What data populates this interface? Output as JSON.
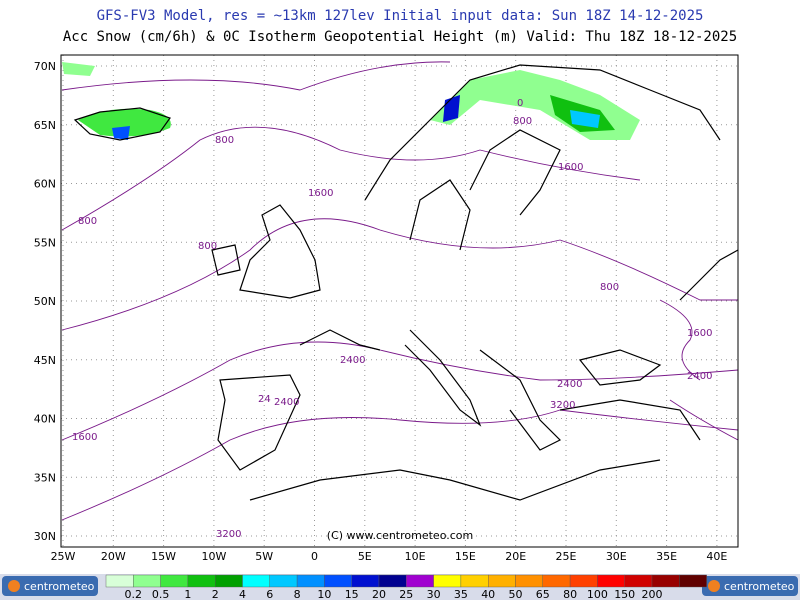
{
  "header": {
    "title": "GFS-FV3 Model, res = ~13km 127lev    Initial input data: Sun 18Z 14-12-2025",
    "subtitle": "Acc Snow (cm/6h) & 0C Isotherm Geopotential Height (m)  Valid: Thu 18Z 18-12-2025"
  },
  "map": {
    "lat_labels": [
      "70N",
      "65N",
      "60N",
      "55N",
      "50N",
      "45N",
      "40N",
      "35N",
      "30N"
    ],
    "lon_labels": [
      "25W",
      "20W",
      "15W",
      "10W",
      "5W",
      "0",
      "5E",
      "10E",
      "15E",
      "20E",
      "25E",
      "30E",
      "35E",
      "40E"
    ],
    "contour_labels": [
      "800",
      "800",
      "800",
      "1600",
      "1600",
      "800",
      "0",
      "800",
      "1600",
      "2400",
      "24",
      "2400",
      "2400",
      "3200",
      "2400",
      "1600",
      "3200"
    ],
    "copyright": "(C) www.centrometeo.com"
  },
  "legend": {
    "labels": [
      "0.2",
      "0.5",
      "1",
      "2",
      "4",
      "6",
      "8",
      "10",
      "15",
      "20",
      "25",
      "30",
      "35",
      "40",
      "50",
      "65",
      "80",
      "100",
      "150",
      "200"
    ],
    "colors": [
      "#d8ffd8",
      "#90ff90",
      "#40e840",
      "#10c010",
      "#00a000",
      "#00ffff",
      "#00c8ff",
      "#0090ff",
      "#0050ff",
      "#0010d0",
      "#000090",
      "#a000d0",
      "#ffff00",
      "#ffd000",
      "#ffb000",
      "#ff9000",
      "#ff6800",
      "#ff4000",
      "#ff0000",
      "#d00000",
      "#980000",
      "#600000"
    ],
    "logo": "centrometeo"
  }
}
